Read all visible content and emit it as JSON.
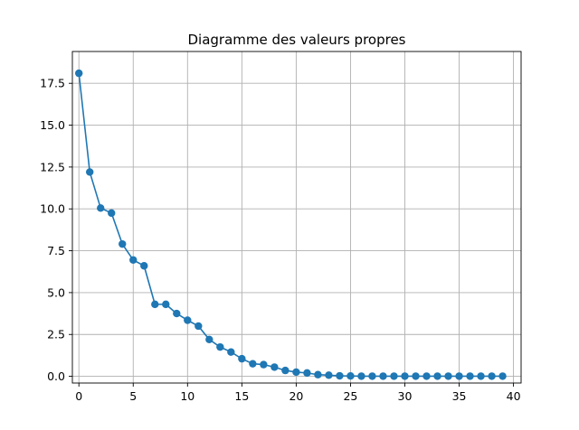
{
  "chart_data": {
    "type": "line",
    "title": "Diagramme des valeurs propres",
    "xlabel": "",
    "ylabel": "",
    "xlim": [
      -0.6,
      40.7
    ],
    "ylim": [
      -0.4,
      19.4
    ],
    "xticks": [
      0,
      5,
      10,
      15,
      20,
      25,
      30,
      35,
      40
    ],
    "xtick_labels": [
      "0",
      "5",
      "10",
      "15",
      "20",
      "25",
      "30",
      "35",
      "40"
    ],
    "yticks": [
      0.0,
      2.5,
      5.0,
      7.5,
      10.0,
      12.5,
      15.0,
      17.5
    ],
    "ytick_labels": [
      "0.0",
      "2.5",
      "5.0",
      "7.5",
      "10.0",
      "12.5",
      "15.0",
      "17.5"
    ],
    "grid": true,
    "marker": "circle",
    "series": [
      {
        "color": "#1f77b4",
        "x": [
          0,
          1,
          2,
          3,
          4,
          5,
          6,
          7,
          8,
          9,
          10,
          11,
          12,
          13,
          14,
          15,
          16,
          17,
          18,
          19,
          20,
          21,
          22,
          23,
          24,
          25,
          26,
          27,
          28,
          29,
          30,
          31,
          32,
          33,
          34,
          35,
          36,
          37,
          38,
          39
        ],
        "y": [
          18.1,
          12.2,
          10.05,
          9.75,
          7.9,
          6.95,
          6.6,
          4.3,
          4.3,
          3.75,
          3.35,
          3.0,
          2.2,
          1.75,
          1.45,
          1.05,
          0.75,
          0.7,
          0.55,
          0.35,
          0.25,
          0.2,
          0.1,
          0.07,
          0.03,
          0.02,
          0.01,
          0.01,
          0.01,
          0.01,
          0.01,
          0.01,
          0.01,
          0.01,
          0.01,
          0.01,
          0.01,
          0.01,
          0.01,
          0.01
        ]
      }
    ]
  }
}
